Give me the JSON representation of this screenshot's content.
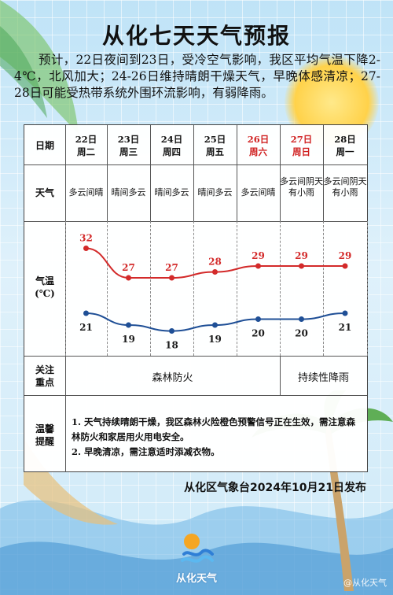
{
  "title": "从化七天天气预报",
  "intro": "预计，22日夜间到23日，受冷空气影响，我区平均气温下降2-4℃，北风加大；24-26日维持晴朗干燥天气，早晚体感清凉；27-28日可能受热带系统外围环流影响，有弱降雨。",
  "table": {
    "row_labels": {
      "date": "日期",
      "weather": "天气",
      "temp": "气温\n(℃)",
      "focus": "关注\n重点",
      "tips": "温馨\n提醒"
    },
    "days": [
      {
        "date": "22日",
        "weekday": "周二",
        "weather": "多云间晴",
        "weekend": false
      },
      {
        "date": "23日",
        "weekday": "周三",
        "weather": "晴间多云",
        "weekend": false
      },
      {
        "date": "24日",
        "weekday": "周四",
        "weather": "晴间多云",
        "weekend": false
      },
      {
        "date": "25日",
        "weekday": "周五",
        "weather": "晴间多云",
        "weekend": false
      },
      {
        "date": "26日",
        "weekday": "周六",
        "weather": "多云间晴",
        "weekend": true
      },
      {
        "date": "27日",
        "weekday": "周日",
        "weather": "多云间阴天\n有小雨",
        "weekend": true
      },
      {
        "date": "28日",
        "weekday": "周一",
        "weather": "多云间阴天\n有小雨",
        "weekend": false
      }
    ],
    "focus": [
      "森林防火",
      "持续性降雨"
    ],
    "tips": [
      "1. 天气持续晴朗干燥，我区森林火险橙色预警信号正在生效，需注意森林防火和家居用火用电安全。",
      "2. 早晚清凉，需注意适时添减衣物。"
    ]
  },
  "chart_data": {
    "type": "line",
    "categories": [
      "22日",
      "23日",
      "24日",
      "25日",
      "26日",
      "27日",
      "28日"
    ],
    "series": [
      {
        "values": [
          32,
          27,
          27,
          28,
          29,
          29,
          29
        ],
        "color": "#d32a2a"
      },
      {
        "values": [
          21,
          19,
          18,
          19,
          20,
          20,
          21
        ],
        "color": "#1f4f96"
      }
    ],
    "ylim": [
      15,
      35
    ]
  },
  "footer": "从化区气象台2024年10月21日发布",
  "logo_text": "从化天气",
  "watermark": "@从化天气",
  "colors": {
    "weekend": "#d02020",
    "high": "#d32a2a",
    "low": "#1f4f96"
  }
}
